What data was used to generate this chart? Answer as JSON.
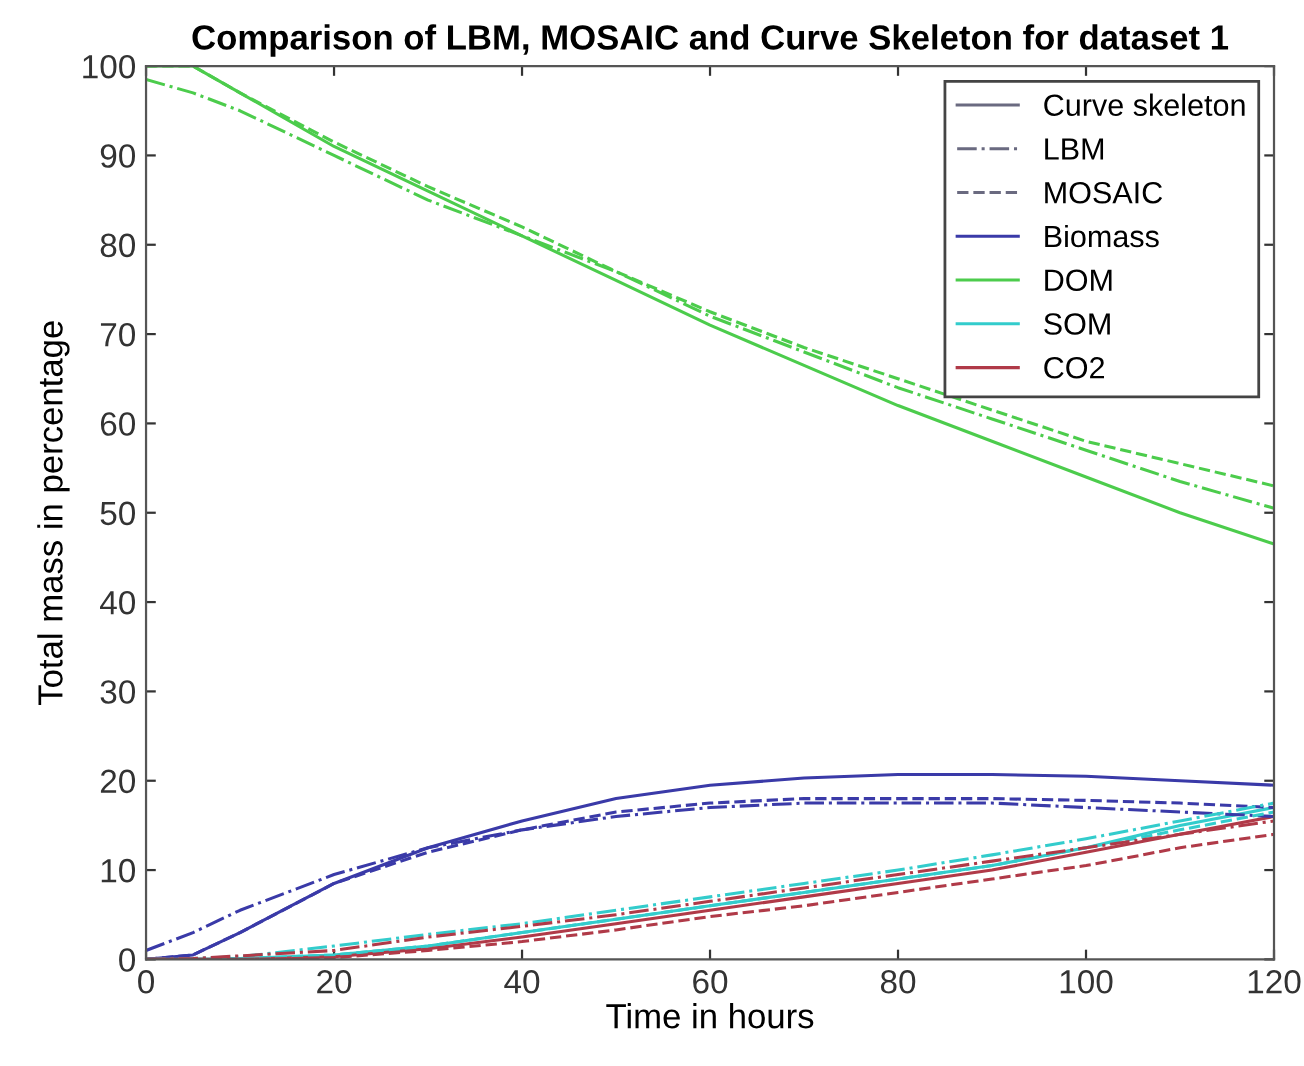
{
  "chart_data": {
    "type": "line",
    "title": "Comparison of LBM, MOSAIC and Curve Skeleton for dataset 1",
    "xlabel": "Time in hours",
    "ylabel": "Total mass in percentage",
    "x": [
      0,
      5,
      10,
      20,
      30,
      40,
      50,
      60,
      70,
      80,
      90,
      100,
      110,
      120
    ],
    "xlim": [
      0,
      120
    ],
    "xticks": [
      0,
      20,
      40,
      60,
      80,
      100,
      120
    ],
    "ylim": [
      0,
      100
    ],
    "yticks": [
      0,
      10,
      20,
      30,
      40,
      50,
      60,
      70,
      80,
      90,
      100
    ],
    "grid": false,
    "legend": "top right",
    "series": [
      {
        "name": "Curve skeleton",
        "color": "#6a6a80",
        "line_style": "solid",
        "values": [
          null,
          null,
          null,
          null,
          null,
          null,
          null,
          null,
          null,
          null,
          null,
          null,
          null,
          null
        ]
      },
      {
        "name": "LBM",
        "color": "#6a6a80",
        "line_style": "dashdot",
        "values": [
          null,
          null,
          null,
          null,
          null,
          null,
          null,
          null,
          null,
          null,
          null,
          null,
          null,
          null
        ]
      },
      {
        "name": "MOSAIC",
        "color": "#6a6a80",
        "line_style": "dashed",
        "values": [
          null,
          null,
          null,
          null,
          null,
          null,
          null,
          null,
          null,
          null,
          null,
          null,
          null,
          null
        ]
      },
      {
        "name": "Biomass",
        "color": "#3a3aa8",
        "line_style": "solid",
        "values": [
          0,
          0.5,
          3,
          8.5,
          12.5,
          15.5,
          18,
          19.5,
          20.3,
          20.7,
          20.7,
          20.5,
          20,
          19.5
        ]
      },
      {
        "name": "DOM",
        "color": "#4ccc4c",
        "line_style": "solid",
        "values": [
          100,
          100,
          97,
          91,
          86,
          81,
          76,
          71,
          66.5,
          62,
          58,
          54,
          50,
          46.5
        ]
      },
      {
        "name": "SOM",
        "color": "#33cccc",
        "line_style": "solid",
        "values": [
          0,
          0,
          0.1,
          0.5,
          1.5,
          3,
          4.5,
          6,
          7.5,
          9,
          10.5,
          12.5,
          15,
          17
        ]
      },
      {
        "name": "CO2",
        "color": "#b03a48",
        "line_style": "solid",
        "values": [
          0,
          0,
          0,
          0.3,
          1.2,
          2.5,
          4,
          5.5,
          7,
          8.5,
          10,
          12,
          14,
          16
        ]
      },
      {
        "color": "#3a3aa8",
        "line_style": "dashdot",
        "values": [
          1,
          3,
          5.5,
          9.5,
          12.5,
          14.5,
          16,
          17,
          17.5,
          17.5,
          17.5,
          17,
          16.5,
          16
        ]
      },
      {
        "color": "#3a3aa8",
        "line_style": "dashed",
        "values": [
          0,
          0.5,
          3,
          8.5,
          12,
          14.5,
          16.5,
          17.5,
          18,
          18,
          18,
          17.8,
          17.5,
          17
        ]
      },
      {
        "color": "#4ccc4c",
        "line_style": "dashdot",
        "values": [
          98.5,
          97,
          95,
          90,
          85,
          81,
          77,
          72,
          68,
          64,
          60.5,
          57,
          53.5,
          50.5
        ]
      },
      {
        "color": "#4ccc4c",
        "line_style": "dashed",
        "values": [
          100,
          100,
          97,
          91.5,
          86.5,
          82,
          77,
          72.5,
          68.5,
          65,
          61.5,
          58,
          55.5,
          53
        ]
      },
      {
        "color": "#33cccc",
        "line_style": "dashdot",
        "values": [
          0,
          0.1,
          0.3,
          1.5,
          2.8,
          4,
          5.5,
          7,
          8.5,
          10,
          11.7,
          13.5,
          15.5,
          17.5
        ]
      },
      {
        "color": "#33cccc",
        "line_style": "dashed",
        "values": [
          0,
          0,
          0.1,
          0.5,
          1.5,
          3,
          4.5,
          6,
          7.5,
          9,
          10.5,
          12.5,
          14.5,
          16.5
        ]
      },
      {
        "color": "#b03a48",
        "line_style": "dashdot",
        "values": [
          0,
          0.1,
          0.4,
          1,
          2.5,
          3.7,
          5,
          6.5,
          8,
          9.5,
          11,
          12.5,
          14,
          15.5
        ]
      },
      {
        "color": "#b03a48",
        "line_style": "dashed",
        "values": [
          0,
          0,
          0,
          0.2,
          1,
          2,
          3.3,
          4.8,
          6,
          7.5,
          9,
          10.5,
          12.5,
          14
        ]
      }
    ]
  }
}
